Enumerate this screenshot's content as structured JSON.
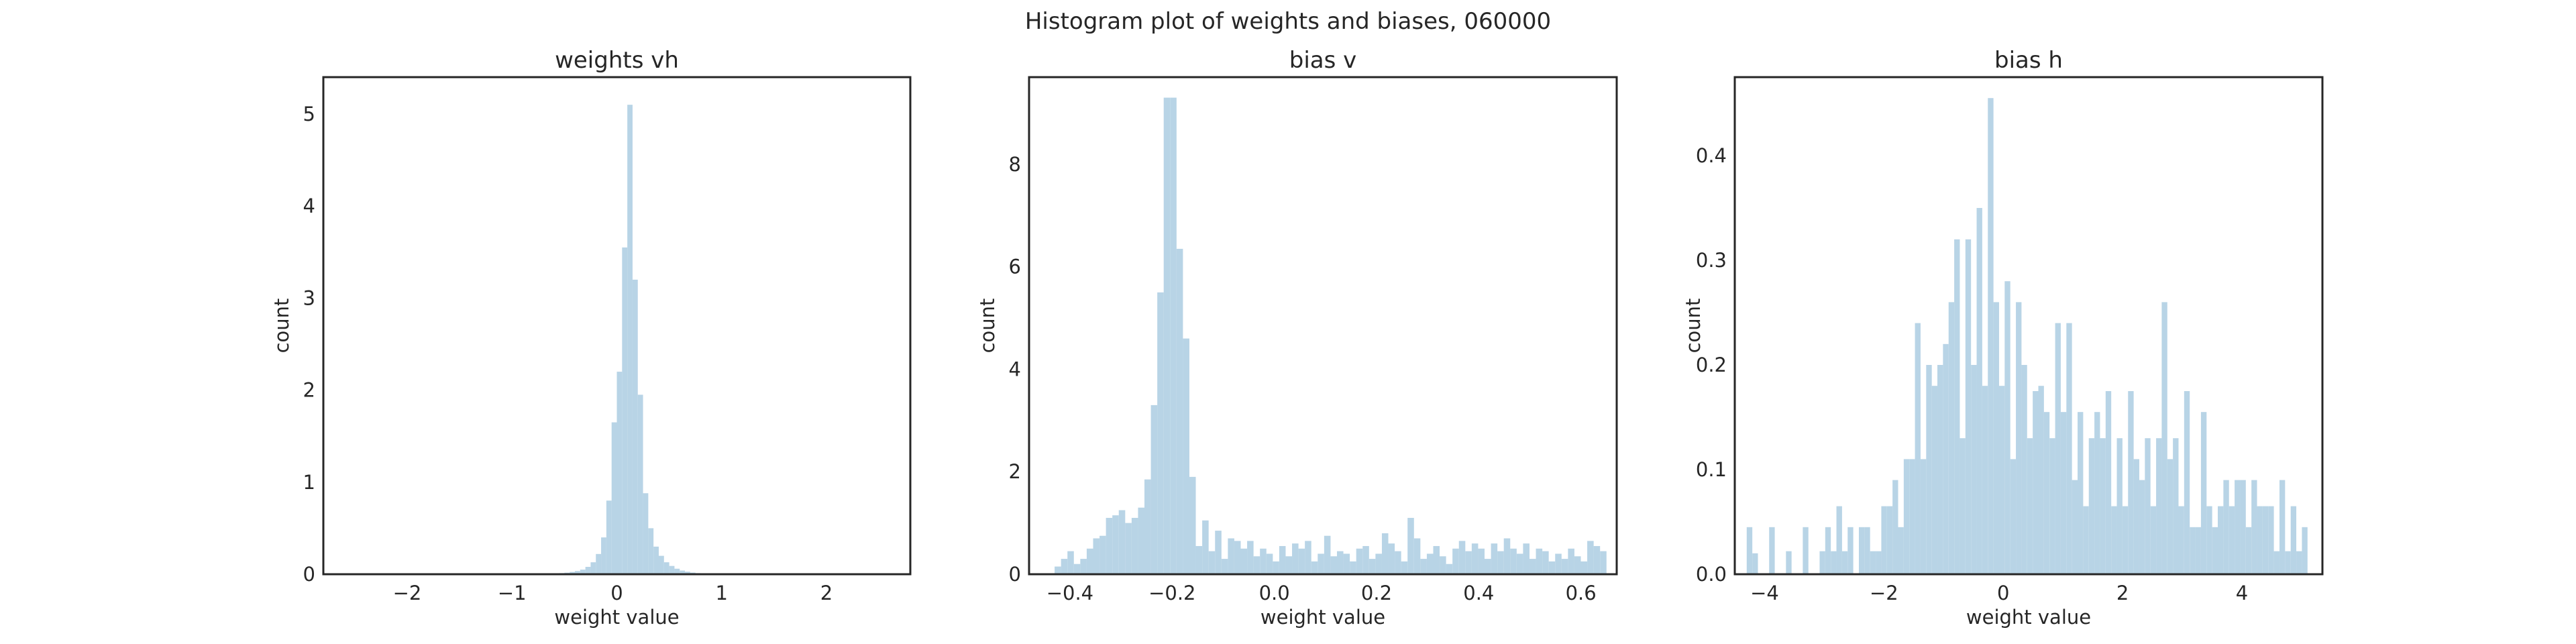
{
  "figure": {
    "title": "Histogram plot of weights and biases, 060000"
  },
  "style": {
    "bar_color": "#b8d4e6",
    "frame_color": "#262626",
    "background": "#ffffff"
  },
  "chart_data": [
    {
      "type": "bar",
      "title": "weights vh",
      "xlabel": "weight value",
      "ylabel": "count",
      "xlim": [
        -2.8,
        2.8
      ],
      "ylim": [
        0,
        5.4
      ],
      "xticks": [
        -2,
        -1,
        0,
        1,
        2
      ],
      "yticks": [
        0,
        1,
        2,
        3,
        4,
        5
      ],
      "xtick_labels": [
        "−2",
        "−1",
        "0",
        "1",
        "2"
      ],
      "ytick_labels": [
        "0",
        "1",
        "2",
        "3",
        "4",
        "5"
      ],
      "bin_edges": [
        -0.8,
        0.8
      ],
      "values": [
        0.002,
        0.003,
        0.004,
        0.006,
        0.009,
        0.012,
        0.017,
        0.025,
        0.035,
        0.05,
        0.08,
        0.13,
        0.22,
        0.4,
        0.8,
        1.65,
        2.2,
        3.55,
        5.1,
        3.2,
        1.95,
        0.88,
        0.5,
        0.3,
        0.2,
        0.13,
        0.09,
        0.06,
        0.04,
        0.028,
        0.018,
        0.012
      ]
    },
    {
      "type": "bar",
      "title": "bias v",
      "xlabel": "weight value",
      "ylabel": "count",
      "xlim": [
        -0.48,
        0.67
      ],
      "ylim": [
        0,
        9.7
      ],
      "xticks": [
        -0.4,
        -0.2,
        0.0,
        0.2,
        0.4,
        0.6
      ],
      "yticks": [
        0,
        2,
        4,
        6,
        8
      ],
      "xtick_labels": [
        "−0.4",
        "−0.2",
        "0.0",
        "0.2",
        "0.4",
        "0.6"
      ],
      "ytick_labels": [
        "0",
        "2",
        "4",
        "6",
        "8"
      ],
      "bin_edges": [
        -0.43,
        0.65
      ],
      "values": [
        0.15,
        0.3,
        0.45,
        0.2,
        0.3,
        0.5,
        0.7,
        0.75,
        1.1,
        1.15,
        1.25,
        1.0,
        1.1,
        1.3,
        1.85,
        3.3,
        5.5,
        9.3,
        9.3,
        6.35,
        4.6,
        1.9,
        0.55,
        1.05,
        0.45,
        0.85,
        0.3,
        0.7,
        0.65,
        0.5,
        0.65,
        0.35,
        0.5,
        0.4,
        0.25,
        0.55,
        0.35,
        0.6,
        0.5,
        0.65,
        0.25,
        0.4,
        0.75,
        0.35,
        0.45,
        0.4,
        0.25,
        0.5,
        0.55,
        0.3,
        0.4,
        0.8,
        0.6,
        0.45,
        0.25,
        1.1,
        0.7,
        0.3,
        0.4,
        0.55,
        0.35,
        0.2,
        0.5,
        0.65,
        0.45,
        0.6,
        0.5,
        0.3,
        0.6,
        0.45,
        0.7,
        0.5,
        0.4,
        0.6,
        0.3,
        0.5,
        0.45,
        0.25,
        0.4,
        0.3,
        0.5,
        0.35,
        0.25,
        0.65,
        0.55,
        0.45
      ]
    },
    {
      "type": "bar",
      "title": "bias h",
      "xlabel": "weight value",
      "ylabel": "count",
      "xlim": [
        -4.5,
        5.35
      ],
      "ylim": [
        0,
        0.475
      ],
      "xticks": [
        -4,
        -2,
        0,
        2,
        4
      ],
      "yticks": [
        0.0,
        0.1,
        0.2,
        0.3,
        0.4
      ],
      "xtick_labels": [
        "−4",
        "−2",
        "0",
        "2",
        "4"
      ],
      "ytick_labels": [
        "0.0",
        "0.1",
        "0.2",
        "0.3",
        "0.4"
      ],
      "bin_edges": [
        -4.3,
        5.1
      ],
      "values": [
        0.045,
        0.02,
        0,
        0,
        0.045,
        0,
        0,
        0.022,
        0,
        0,
        0.045,
        0,
        0,
        0.022,
        0.045,
        0.022,
        0.065,
        0.022,
        0.045,
        0,
        0.045,
        0.045,
        0.022,
        0.022,
        0.065,
        0.065,
        0.09,
        0.045,
        0.11,
        0.11,
        0.24,
        0.11,
        0.2,
        0.18,
        0.2,
        0.22,
        0.26,
        0.32,
        0.13,
        0.32,
        0.2,
        0.35,
        0.18,
        0.455,
        0.26,
        0.18,
        0.28,
        0.11,
        0.26,
        0.2,
        0.13,
        0.175,
        0.18,
        0.155,
        0.13,
        0.24,
        0.155,
        0.24,
        0.09,
        0.155,
        0.065,
        0.13,
        0.155,
        0.13,
        0.175,
        0.065,
        0.13,
        0.065,
        0.175,
        0.11,
        0.09,
        0.13,
        0.065,
        0.13,
        0.26,
        0.11,
        0.13,
        0.065,
        0.175,
        0.045,
        0.045,
        0.155,
        0.065,
        0.045,
        0.065,
        0.09,
        0.065,
        0.09,
        0.09,
        0.045,
        0.09,
        0.065,
        0.065,
        0.065,
        0.022,
        0.09,
        0.022,
        0.065,
        0.022,
        0.045
      ]
    }
  ]
}
